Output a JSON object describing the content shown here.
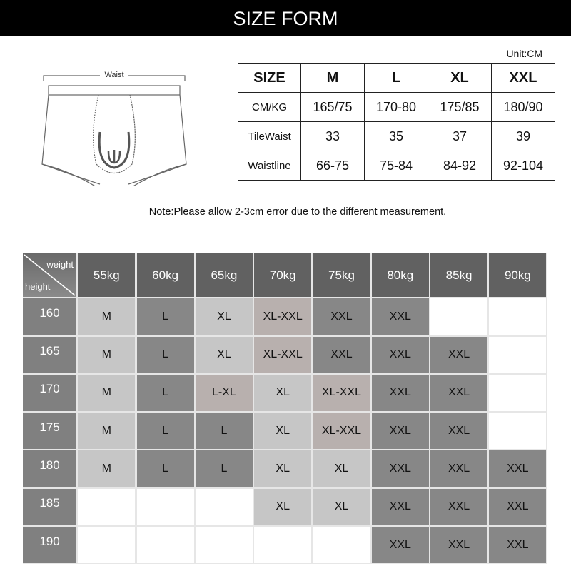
{
  "title": "SIZE FORM",
  "unit": "Unit:CM",
  "diagram": {
    "waist_label": "Waist"
  },
  "size_table": {
    "header": [
      "SIZE",
      "M",
      "L",
      "XL",
      "XXL"
    ],
    "rows": [
      [
        "CM/KG",
        "165/75",
        "170-80",
        "175/85",
        "180/90"
      ],
      [
        "TileWaist",
        "33",
        "35",
        "37",
        "39"
      ],
      [
        "Waistline",
        "66-75",
        "75-84",
        "84-92",
        "92-104"
      ]
    ]
  },
  "note": "Note:Please allow 2-3cm error due to the different measurement.",
  "chart": {
    "corner_weight": "weight",
    "corner_height": "height",
    "weights": [
      "55kg",
      "60kg",
      "65kg",
      "70kg",
      "75kg",
      "80kg",
      "85kg",
      "90kg"
    ],
    "colors": {
      "header": "#616161",
      "dark": "#878787",
      "light": "#c6c6c6",
      "pink": "#b8b0ae",
      "empty": "#ffffff"
    },
    "rows": [
      {
        "height": "160",
        "cells": [
          [
            "M",
            "light"
          ],
          [
            "L",
            "dark"
          ],
          [
            "XL",
            "light"
          ],
          [
            "XL-XXL",
            "pink"
          ],
          [
            "XXL",
            "dark"
          ],
          [
            "XXL",
            "dark"
          ],
          [
            "",
            "empty"
          ],
          [
            "",
            "empty"
          ]
        ]
      },
      {
        "height": "165",
        "cells": [
          [
            "M",
            "light"
          ],
          [
            "L",
            "dark"
          ],
          [
            "XL",
            "light"
          ],
          [
            "XL-XXL",
            "pink"
          ],
          [
            "XXL",
            "dark"
          ],
          [
            "XXL",
            "dark"
          ],
          [
            "XXL",
            "dark"
          ],
          [
            "",
            "empty"
          ]
        ]
      },
      {
        "height": "170",
        "cells": [
          [
            "M",
            "light"
          ],
          [
            "L",
            "dark"
          ],
          [
            "L-XL",
            "pink"
          ],
          [
            "XL",
            "light"
          ],
          [
            "XL-XXL",
            "pink"
          ],
          [
            "XXL",
            "dark"
          ],
          [
            "XXL",
            "dark"
          ],
          [
            "",
            "empty"
          ]
        ]
      },
      {
        "height": "175",
        "cells": [
          [
            "M",
            "light"
          ],
          [
            "L",
            "dark"
          ],
          [
            "L",
            "dark"
          ],
          [
            "XL",
            "light"
          ],
          [
            "XL-XXL",
            "pink"
          ],
          [
            "XXL",
            "dark"
          ],
          [
            "XXL",
            "dark"
          ],
          [
            "",
            "empty"
          ]
        ]
      },
      {
        "height": "180",
        "cells": [
          [
            "M",
            "light"
          ],
          [
            "L",
            "dark"
          ],
          [
            "L",
            "dark"
          ],
          [
            "XL",
            "light"
          ],
          [
            "XL",
            "light"
          ],
          [
            "XXL",
            "dark"
          ],
          [
            "XXL",
            "dark"
          ],
          [
            "XXL",
            "dark"
          ]
        ]
      },
      {
        "height": "185",
        "cells": [
          [
            "",
            "empty"
          ],
          [
            "",
            "empty"
          ],
          [
            "",
            "empty"
          ],
          [
            "XL",
            "light"
          ],
          [
            "XL",
            "light"
          ],
          [
            "XXL",
            "dark"
          ],
          [
            "XXL",
            "dark"
          ],
          [
            "XXL",
            "dark"
          ]
        ]
      },
      {
        "height": "190",
        "cells": [
          [
            "",
            "empty"
          ],
          [
            "",
            "empty"
          ],
          [
            "",
            "empty"
          ],
          [
            "",
            "empty"
          ],
          [
            "",
            "empty"
          ],
          [
            "XXL",
            "dark"
          ],
          [
            "XXL",
            "dark"
          ],
          [
            "XXL",
            "dark"
          ]
        ]
      }
    ]
  }
}
